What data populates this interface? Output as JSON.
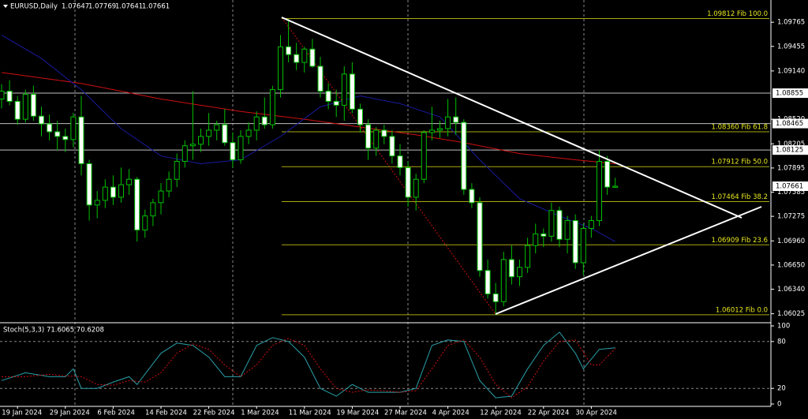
{
  "chart_data": {
    "type": "candlestick",
    "symbol": "EURUSD,Daily",
    "categories": [
      null,
      null,
      "19 Jan 2024",
      null,
      null,
      null,
      null,
      null,
      "29 Jan 2024",
      null,
      null,
      null,
      null,
      null,
      "6 Feb 2024",
      null,
      null,
      null,
      null,
      null,
      "14 Feb 2024",
      null,
      null,
      null,
      null,
      null,
      "22 Feb 2024",
      null,
      null,
      null,
      null,
      null,
      "1 Mar 2024",
      null,
      null,
      null,
      null,
      null,
      "11 Mar 2024",
      null,
      null,
      null,
      null,
      null,
      "19 Mar 2024",
      null,
      null,
      null,
      null,
      null,
      "27 Mar 2024",
      null,
      null,
      null,
      null,
      null,
      "4 Apr 2024",
      null,
      null,
      null,
      null,
      null,
      "12 Apr 2024",
      null,
      null,
      null,
      null,
      null,
      "22 Apr 2024",
      null,
      null,
      null,
      null,
      null,
      "30 Apr 2024",
      null,
      null,
      null
    ],
    "ohlc": [
      [
        1.0878,
        1.0897,
        1.0866,
        1.0888
      ],
      [
        1.0888,
        1.0902,
        1.087,
        1.0875
      ],
      [
        1.0875,
        1.0882,
        1.0845,
        1.0852
      ],
      [
        1.0852,
        1.089,
        1.0848,
        1.0884
      ],
      [
        1.0884,
        1.0895,
        1.085,
        1.0856
      ],
      [
        1.0856,
        1.0868,
        1.083,
        1.0846
      ],
      [
        1.0846,
        1.0858,
        1.0825,
        1.0836
      ],
      [
        1.0836,
        1.085,
        1.0812,
        1.083
      ],
      [
        1.083,
        1.084,
        1.081,
        1.0826
      ],
      [
        1.0826,
        1.086,
        1.0816,
        1.0855
      ],
      [
        1.0855,
        1.0882,
        1.078,
        1.0795
      ],
      [
        1.0795,
        1.08,
        1.0722,
        1.0742
      ],
      [
        1.0742,
        1.076,
        1.0725,
        1.0748
      ],
      [
        1.0748,
        1.0775,
        1.0738,
        1.0765
      ],
      [
        1.0765,
        1.078,
        1.0742,
        1.0752
      ],
      [
        1.0752,
        1.079,
        1.0745,
        1.0768
      ],
      [
        1.0768,
        1.0788,
        1.0755,
        1.0775
      ],
      [
        1.0775,
        1.0778,
        1.0695,
        1.071
      ],
      [
        1.071,
        1.0736,
        1.07,
        1.0728
      ],
      [
        1.0728,
        1.075,
        1.0715,
        1.0745
      ],
      [
        1.0745,
        1.077,
        1.073,
        1.076
      ],
      [
        1.076,
        1.0785,
        1.0752,
        1.0775
      ],
      [
        1.0775,
        1.0808,
        1.0765,
        1.0798
      ],
      [
        1.0798,
        1.0825,
        1.079,
        1.0818
      ],
      [
        1.0818,
        1.0888,
        1.08,
        1.082
      ],
      [
        1.082,
        1.084,
        1.081,
        1.083
      ],
      [
        1.083,
        1.086,
        1.0818,
        1.0838
      ],
      [
        1.0838,
        1.085,
        1.0825,
        1.0845
      ],
      [
        1.0845,
        1.0865,
        1.0818,
        1.0822
      ],
      [
        1.0822,
        1.0835,
        1.079,
        1.08
      ],
      [
        1.08,
        1.0838,
        1.0795,
        1.083
      ],
      [
        1.083,
        1.0848,
        1.082,
        1.0838
      ],
      [
        1.0838,
        1.0862,
        1.0825,
        1.0855
      ],
      [
        1.0855,
        1.088,
        1.084,
        1.0845
      ],
      [
        1.0845,
        1.0895,
        1.084,
        1.089
      ],
      [
        1.089,
        1.096,
        1.088,
        1.0945
      ],
      [
        1.0945,
        1.0981,
        1.0925,
        1.0935
      ],
      [
        1.0935,
        1.095,
        1.0915,
        1.0925
      ],
      [
        1.0925,
        1.0945,
        1.0912,
        1.0942
      ],
      [
        1.0942,
        1.0955,
        1.0918,
        1.092
      ],
      [
        1.092,
        1.0932,
        1.088,
        1.0888
      ],
      [
        1.0888,
        1.0898,
        1.0865,
        1.0875
      ],
      [
        1.0875,
        1.089,
        1.0855,
        1.087
      ],
      [
        1.087,
        1.092,
        1.085,
        1.091
      ],
      [
        1.091,
        1.0925,
        1.086,
        1.0865
      ],
      [
        1.0865,
        1.0872,
        1.0835,
        1.0845
      ],
      [
        1.0845,
        1.0852,
        1.08,
        1.0815
      ],
      [
        1.0815,
        1.0842,
        1.0805,
        1.0838
      ],
      [
        1.0838,
        1.0845,
        1.082,
        1.083
      ],
      [
        1.083,
        1.0838,
        1.0795,
        1.0805
      ],
      [
        1.0805,
        1.082,
        1.078,
        1.079
      ],
      [
        1.079,
        1.0798,
        1.074,
        1.0752
      ],
      [
        1.0752,
        1.0782,
        1.0735,
        1.0775
      ],
      [
        1.0775,
        1.0838,
        1.077,
        1.0835
      ],
      [
        1.0835,
        1.0868,
        1.0825,
        1.0838
      ],
      [
        1.0838,
        1.085,
        1.0828,
        1.084
      ],
      [
        1.084,
        1.0878,
        1.083,
        1.0855
      ],
      [
        1.0855,
        1.088,
        1.0832,
        1.0848
      ],
      [
        1.0848,
        1.0852,
        1.0755,
        1.0762
      ],
      [
        1.0762,
        1.077,
        1.0738,
        1.0745
      ],
      [
        1.0745,
        1.0752,
        1.065,
        1.0658
      ],
      [
        1.0658,
        1.0672,
        1.0622,
        1.0628
      ],
      [
        1.0628,
        1.0642,
        1.0601,
        1.0618
      ],
      [
        1.0618,
        1.0682,
        1.0612,
        1.0672
      ],
      [
        1.0672,
        1.069,
        1.064,
        1.065
      ],
      [
        1.065,
        1.0672,
        1.0638,
        1.0662
      ],
      [
        1.0662,
        1.07,
        1.0655,
        1.069
      ],
      [
        1.069,
        1.0718,
        1.068,
        1.0705
      ],
      [
        1.0705,
        1.0712,
        1.0688,
        1.0702
      ],
      [
        1.0702,
        1.0745,
        1.0695,
        1.0735
      ],
      [
        1.0735,
        1.074,
        1.0688,
        1.0698
      ],
      [
        1.0698,
        1.0728,
        1.068,
        1.0722
      ],
      [
        1.0722,
        1.073,
        1.066,
        1.0668
      ],
      [
        1.0668,
        1.0718,
        1.0652,
        1.0712
      ],
      [
        1.0712,
        1.0728,
        1.07,
        1.0722
      ],
      [
        1.0722,
        1.0812,
        1.0715,
        1.0798
      ],
      [
        1.0798,
        1.0805,
        1.0755,
        1.0765
      ],
      [
        1.07647,
        1.07769,
        1.07641,
        1.07661
      ]
    ],
    "up_color": "#000000",
    "down_color": "#ffffff",
    "wick_color": "#00c000",
    "ylim": [
      1.0592,
      1.1005
    ],
    "yticks": [
      1.09765,
      1.09455,
      {
        "value": 1.0914,
        "label": "1.09140"
      },
      {
        "value": 1.0852,
        "label": "1.08520"
      },
      1.08205,
      1.07895,
      1.07585,
      1.07275,
      {
        "value": 1.0696,
        "label": "1.06960"
      },
      {
        "value": 1.0665,
        "label": "1.06650"
      },
      {
        "value": 1.0634,
        "label": "1.06340"
      },
      1.06025
    ],
    "price_levels": [
      1.08855,
      1.08465,
      1.08125
    ],
    "fib_levels": [
      {
        "value": 1.09812,
        "label": "1.09812 Fib 100.0"
      },
      {
        "value": 1.0836,
        "label": "1.08360 Fib 61.8"
      },
      {
        "value": 1.07912,
        "label": "1.07912 Fib 50.0"
      },
      {
        "value": 1.07464,
        "label": "1.07464 Fib 38.2"
      },
      {
        "value": 1.06909,
        "label": "1.06909 Fib 23.6"
      },
      {
        "value": 1.06012,
        "label": "1.06012 Fib 0.0"
      }
    ],
    "moving_averages": [
      {
        "color": "#d01010",
        "x": [
          0,
          10,
          20,
          30,
          38,
          45,
          52,
          58,
          65,
          72,
          77
        ],
        "values": [
          1.0912,
          1.0898,
          1.0878,
          1.0862,
          1.0852,
          1.0842,
          1.0832,
          1.0822,
          1.0808,
          1.08,
          1.0795
        ]
      },
      {
        "color": "#1a1aa0",
        "x": [
          0,
          5,
          10,
          15,
          20,
          25,
          30,
          35,
          40,
          45,
          50,
          55,
          60,
          65,
          70,
          74,
          77
        ],
        "values": [
          1.096,
          1.093,
          1.089,
          1.084,
          1.0805,
          1.0795,
          1.08,
          1.083,
          1.0868,
          1.0882,
          1.0872,
          1.0855,
          1.08,
          1.075,
          1.0728,
          1.0712,
          1.0695
        ]
      }
    ],
    "stochastic": {
      "title": "Stoch(5,3,3) 71.6065 70.6208",
      "ylim": [
        0,
        100
      ],
      "yticks": [
        100,
        80,
        20,
        0
      ],
      "lines": [
        {
          "color": "#2a9fa8",
          "dashed": false,
          "x": [
            0,
            3,
            6,
            8,
            9,
            10,
            12,
            14,
            16,
            17,
            20,
            22,
            24,
            26,
            28,
            30,
            32,
            34,
            36,
            38,
            40,
            42,
            44,
            46,
            48,
            50,
            52,
            54,
            56,
            58,
            60,
            62,
            64,
            66,
            68,
            70,
            72,
            73,
            75,
            77
          ],
          "values": [
            30,
            40,
            35,
            35,
            45,
            20,
            20,
            28,
            35,
            25,
            65,
            78,
            75,
            60,
            35,
            35,
            75,
            85,
            80,
            60,
            20,
            10,
            25,
            15,
            15,
            15,
            20,
            75,
            82,
            80,
            30,
            8,
            10,
            45,
            75,
            92,
            65,
            45,
            70,
            72
          ]
        },
        {
          "color": "#d01010",
          "dashed": true,
          "x": [
            0,
            3,
            6,
            8,
            10,
            12,
            14,
            16,
            18,
            20,
            22,
            24,
            26,
            28,
            30,
            32,
            34,
            36,
            38,
            40,
            42,
            44,
            46,
            48,
            50,
            52,
            54,
            56,
            58,
            60,
            62,
            64,
            66,
            68,
            70,
            72,
            74,
            75,
            77
          ],
          "values": [
            35,
            35,
            38,
            36,
            35,
            25,
            24,
            30,
            28,
            40,
            65,
            77,
            70,
            50,
            35,
            50,
            75,
            84,
            75,
            45,
            20,
            15,
            18,
            17,
            15,
            17,
            45,
            75,
            82,
            60,
            25,
            8,
            22,
            55,
            80,
            82,
            50,
            50,
            71
          ]
        }
      ]
    }
  }
}
